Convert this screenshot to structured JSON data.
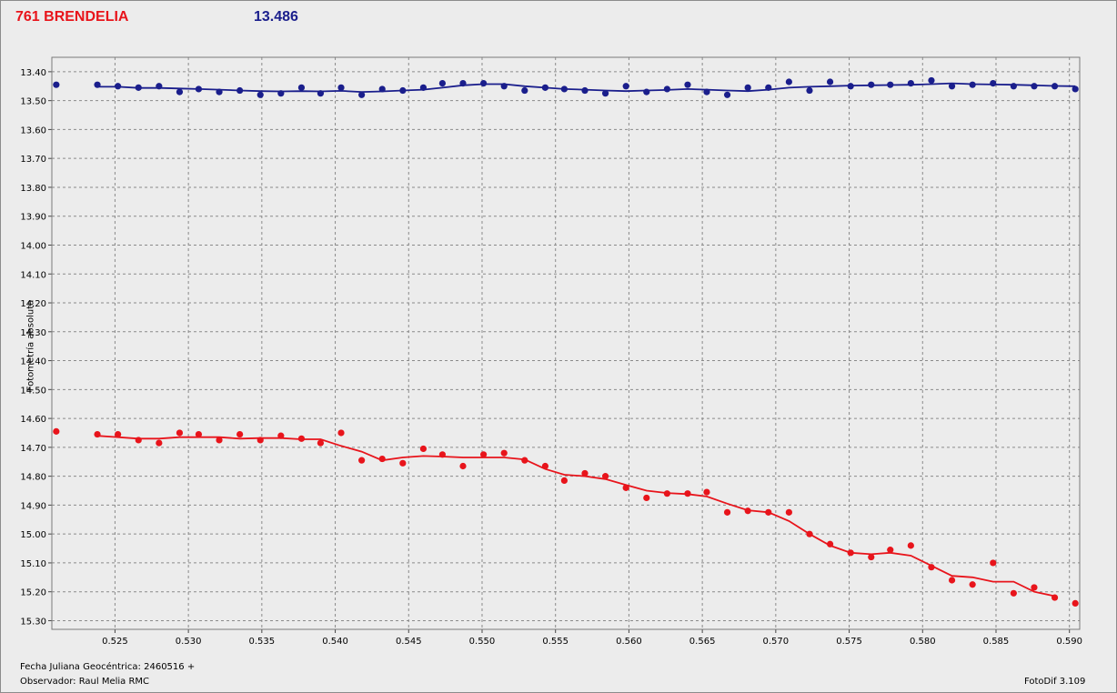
{
  "header": {
    "object_name": "761 BRENDELIA",
    "magnitude": "13.486"
  },
  "footer": {
    "date_label": "Fecha Juliana Geocéntrica: 2460516 +",
    "observer_label": "Observador: Raul Melia RMC",
    "software_label": "FotoDif 3.109"
  },
  "chart_data": {
    "type": "scatter",
    "ylabel": "Fotometría absoluta",
    "y_inverted": true,
    "xlim": [
      0.5207,
      0.5907
    ],
    "ylim": [
      13.35,
      15.33
    ],
    "x_ticks": [
      "0.525",
      "0.530",
      "0.535",
      "0.540",
      "0.545",
      "0.550",
      "0.555",
      "0.560",
      "0.565",
      "0.570",
      "0.575",
      "0.580",
      "0.585",
      "0.590"
    ],
    "y_ticks": [
      "13.40",
      "13.50",
      "13.60",
      "13.70",
      "13.80",
      "13.90",
      "14.00",
      "14.10",
      "14.20",
      "14.30",
      "14.40",
      "14.50",
      "14.60",
      "14.70",
      "14.80",
      "14.90",
      "15.00",
      "15.10",
      "15.20",
      "15.30"
    ],
    "grid": true,
    "series": [
      {
        "color": "#1a1e8c",
        "x": [
          0.521,
          0.5238,
          0.5252,
          0.5266,
          0.528,
          0.5294,
          0.5307,
          0.5321,
          0.5335,
          0.5349,
          0.5363,
          0.5377,
          0.539,
          0.5404,
          0.5418,
          0.5432,
          0.5446,
          0.546,
          0.5473,
          0.5487,
          0.5501,
          0.5515,
          0.5529,
          0.5543,
          0.5556,
          0.557,
          0.5584,
          0.5598,
          0.5612,
          0.5626,
          0.564,
          0.5653,
          0.5667,
          0.5681,
          0.5695,
          0.5709,
          0.5723,
          0.5737,
          0.5751,
          0.5765,
          0.5778,
          0.5792,
          0.5806,
          0.582,
          0.5834,
          0.5848,
          0.5862,
          0.5876,
          0.589,
          0.5904
        ],
        "y": [
          13.445,
          13.445,
          13.45,
          13.455,
          13.45,
          13.47,
          13.46,
          13.47,
          13.465,
          13.48,
          13.475,
          13.455,
          13.475,
          13.455,
          13.48,
          13.46,
          13.465,
          13.455,
          13.44,
          13.44,
          13.44,
          13.45,
          13.465,
          13.455,
          13.46,
          13.465,
          13.475,
          13.45,
          13.47,
          13.46,
          13.445,
          13.47,
          13.48,
          13.455,
          13.455,
          13.435,
          13.465,
          13.435,
          13.45,
          13.445,
          13.445,
          13.44,
          13.43,
          13.45,
          13.445,
          13.44,
          13.45,
          13.45,
          13.45,
          13.46
        ],
        "trend": [
          13.452,
          13.452,
          13.456,
          13.456,
          13.458,
          13.46,
          13.462,
          13.465,
          13.467,
          13.468,
          13.467,
          13.468,
          13.466,
          13.47,
          13.468,
          13.465,
          13.462,
          13.455,
          13.447,
          13.443,
          13.443,
          13.45,
          13.455,
          13.46,
          13.462,
          13.465,
          13.467,
          13.465,
          13.463,
          13.46,
          13.462,
          13.465,
          13.467,
          13.462,
          13.455,
          13.452,
          13.45,
          13.448,
          13.447,
          13.446,
          13.445,
          13.443,
          13.44,
          13.443,
          13.444,
          13.445,
          13.447,
          13.449,
          13.45
        ]
      },
      {
        "color": "#e8141b",
        "x": [
          0.521,
          0.5238,
          0.5252,
          0.5266,
          0.528,
          0.5294,
          0.5307,
          0.5321,
          0.5335,
          0.5349,
          0.5363,
          0.5377,
          0.539,
          0.5404,
          0.5418,
          0.5432,
          0.5446,
          0.546,
          0.5473,
          0.5487,
          0.5501,
          0.5515,
          0.5529,
          0.5543,
          0.5556,
          0.557,
          0.5584,
          0.5598,
          0.5612,
          0.5626,
          0.564,
          0.5653,
          0.5667,
          0.5681,
          0.5695,
          0.5709,
          0.5723,
          0.5737,
          0.5751,
          0.5765,
          0.5778,
          0.5792,
          0.5806,
          0.582,
          0.5834,
          0.5848,
          0.5862,
          0.5876,
          0.589,
          0.5904
        ],
        "y": [
          14.645,
          14.655,
          14.655,
          14.675,
          14.685,
          14.65,
          14.655,
          14.675,
          14.655,
          14.675,
          14.66,
          14.67,
          14.685,
          14.65,
          14.745,
          14.74,
          14.755,
          14.705,
          14.725,
          14.765,
          14.725,
          14.72,
          14.745,
          14.765,
          14.815,
          14.79,
          14.8,
          14.84,
          14.875,
          14.86,
          14.86,
          14.855,
          14.925,
          14.92,
          14.925,
          14.925,
          15.0,
          15.035,
          15.065,
          15.08,
          15.055,
          15.04,
          15.115,
          15.16,
          15.175,
          15.1,
          15.205,
          15.185,
          15.22,
          15.24
        ],
        "trend": [
          14.66,
          14.665,
          14.67,
          14.67,
          14.665,
          14.665,
          14.665,
          14.67,
          14.668,
          14.668,
          14.672,
          14.672,
          14.695,
          14.715,
          14.745,
          14.735,
          14.73,
          14.732,
          14.735,
          14.735,
          14.735,
          14.742,
          14.775,
          14.795,
          14.8,
          14.81,
          14.83,
          14.85,
          14.858,
          14.862,
          14.87,
          14.895,
          14.918,
          14.925,
          14.955,
          15.0,
          15.04,
          15.065,
          15.07,
          15.065,
          15.075,
          15.11,
          15.145,
          15.15,
          15.165,
          15.165,
          15.2,
          15.215
        ]
      }
    ]
  }
}
